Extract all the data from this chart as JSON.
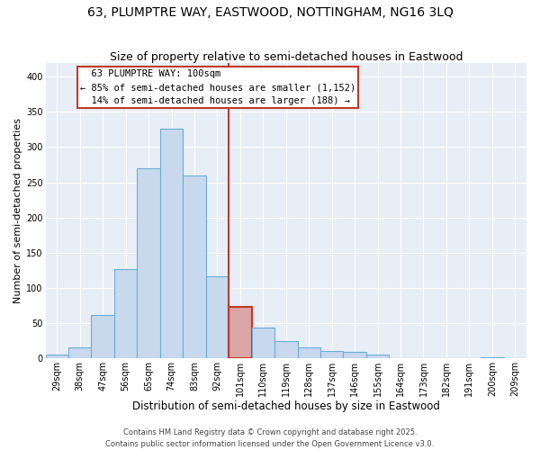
{
  "title": "63, PLUMPTRE WAY, EASTWOOD, NOTTINGHAM, NG16 3LQ",
  "subtitle": "Size of property relative to semi-detached houses in Eastwood",
  "xlabel": "Distribution of semi-detached houses by size in Eastwood",
  "ylabel": "Number of semi-detached properties",
  "bar_labels": [
    "29sqm",
    "38sqm",
    "47sqm",
    "56sqm",
    "65sqm",
    "74sqm",
    "83sqm",
    "92sqm",
    "101sqm",
    "110sqm",
    "119sqm",
    "128sqm",
    "137sqm",
    "146sqm",
    "155sqm",
    "164sqm",
    "173sqm",
    "182sqm",
    "191sqm",
    "200sqm",
    "209sqm"
  ],
  "bar_heights": [
    5,
    16,
    62,
    127,
    270,
    326,
    259,
    117,
    73,
    44,
    24,
    16,
    11,
    9,
    5,
    0,
    0,
    0,
    0,
    2,
    0
  ],
  "bar_color": "#c8d9ee",
  "bar_edge_color": "#6aaed6",
  "highlight_index": 8,
  "highlight_bar_color": "#d9a5a5",
  "highlight_bar_edge": "#c0392b",
  "vline_color": "#c0392b",
  "annotation_title": "63 PLUMPTRE WAY: 100sqm",
  "annotation_line1": "← 85% of semi-detached houses are smaller (1,152)",
  "annotation_line2": "14% of semi-detached houses are larger (188) →",
  "ylim": [
    0,
    420
  ],
  "yticks": [
    0,
    50,
    100,
    150,
    200,
    250,
    300,
    350,
    400
  ],
  "background_color": "#e8eef5",
  "grid_color": "#ffffff",
  "footer1": "Contains HM Land Registry data © Crown copyright and database right 2025.",
  "footer2": "Contains public sector information licensed under the Open Government Licence v3.0.",
  "title_fontsize": 10,
  "subtitle_fontsize": 9,
  "xlabel_fontsize": 8.5,
  "ylabel_fontsize": 8,
  "tick_fontsize": 7,
  "annotation_fontsize": 7.5,
  "footer_fontsize": 6
}
